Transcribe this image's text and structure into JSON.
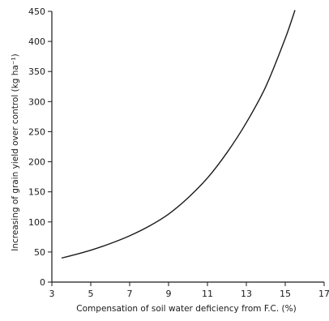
{
  "chart_data": {
    "type": "line",
    "title": "",
    "xlabel": "Compensation of soil water deficiency from F.C. (%)",
    "ylabel": "Increasing of grain yield over control (kg ha⁻¹)",
    "xlim": [
      3,
      17
    ],
    "ylim": [
      0,
      450
    ],
    "xticks": [
      3,
      5,
      7,
      9,
      11,
      13,
      15,
      17
    ],
    "xtick_labels": [
      "3",
      "5",
      "7",
      "9",
      "11",
      "13",
      "15",
      "17"
    ],
    "yticks": [
      0,
      50,
      100,
      150,
      200,
      250,
      300,
      350,
      400,
      450
    ],
    "ytick_labels": [
      "0",
      "50",
      "100",
      "150",
      "200",
      "250",
      "300",
      "350",
      "400",
      "450"
    ],
    "grid": false,
    "series": [
      {
        "x": [
          3.5,
          4,
          5,
          6,
          7,
          8,
          9,
          10,
          11,
          12,
          13,
          14,
          15,
          15.5
        ],
        "values": [
          40,
          44,
          53,
          64,
          77,
          93,
          113,
          140,
          173,
          215,
          265,
          325,
          405,
          452
        ]
      }
    ]
  }
}
